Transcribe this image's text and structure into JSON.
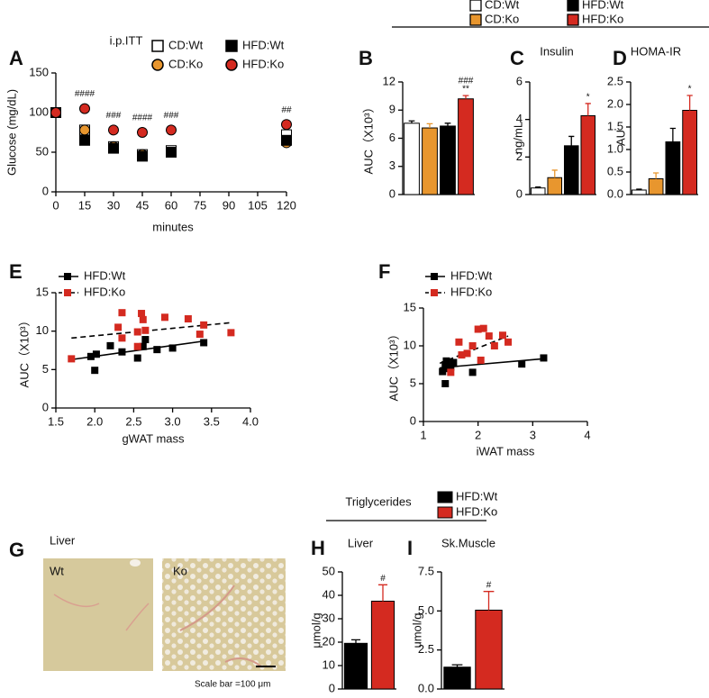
{
  "chart_data": [
    {
      "type": "scatter",
      "panel": "A",
      "title": "i.p.ITT",
      "xlabel": "minutes",
      "ylabel": "Glucose (mg/dL)",
      "x": [
        0,
        15,
        30,
        45,
        60,
        120
      ],
      "xlim": [
        0,
        120
      ],
      "xticks": [
        0,
        15,
        30,
        45,
        60,
        75,
        90,
        105,
        120
      ],
      "ylim": [
        0,
        150
      ],
      "yticks": [
        0,
        50,
        100,
        150
      ],
      "legend": true,
      "annotations": [
        null,
        "####",
        "###",
        "####",
        "###",
        "##"
      ],
      "series": [
        {
          "name": "CD:Wt",
          "color": "#ffffff",
          "marker": "square",
          "values": [
            100,
            78,
            57,
            47,
            52,
            72
          ]
        },
        {
          "name": "CD:Ko",
          "color": "#e8962e",
          "marker": "circle",
          "values": [
            100,
            78,
            57,
            47,
            50,
            62
          ]
        },
        {
          "name": "HFD:Wt",
          "color": "#000000",
          "marker": "square",
          "values": [
            100,
            65,
            55,
            45,
            50,
            65
          ]
        },
        {
          "name": "HFD:Ko",
          "color": "#d42a20",
          "marker": "circle",
          "values": [
            100,
            105,
            78,
            75,
            78,
            85
          ]
        }
      ]
    },
    {
      "type": "bar",
      "panel": "B",
      "ylabel": "AUC（X10³）",
      "categories": [
        null,
        null,
        null,
        null
      ],
      "values": [
        7.6,
        7.1,
        7.3,
        10.2
      ],
      "errors": [
        0.25,
        0.45,
        0.3,
        0.35
      ],
      "colors": [
        "#ffffff",
        "#e8962e",
        "#000000",
        "#d42a20"
      ],
      "annotations": [
        null,
        null,
        null,
        [
          "**",
          "###"
        ]
      ],
      "ylim": [
        0,
        12
      ],
      "yticks": [
        0,
        3,
        6,
        9,
        12
      ]
    },
    {
      "type": "bar",
      "panel": "C",
      "title": "Insulin",
      "ylabel": "ng/mL",
      "categories": [
        null,
        null,
        null,
        null
      ],
      "values": [
        0.35,
        0.9,
        2.6,
        4.2
      ],
      "errors": [
        0.05,
        0.4,
        0.5,
        0.65
      ],
      "colors": [
        "#ffffff",
        "#e8962e",
        "#000000",
        "#d42a20"
      ],
      "annotations": [
        null,
        null,
        null,
        [
          "*"
        ]
      ],
      "ylim": [
        0,
        6
      ],
      "yticks": [
        0,
        2,
        4,
        6
      ]
    },
    {
      "type": "bar",
      "panel": "D",
      "title": "HOMA-IR",
      "ylabel": "AU",
      "categories": [
        null,
        null,
        null,
        null
      ],
      "values": [
        0.1,
        0.35,
        1.17,
        1.87
      ],
      "errors": [
        0.02,
        0.13,
        0.3,
        0.33
      ],
      "colors": [
        "#ffffff",
        "#e8962e",
        "#000000",
        "#d42a20"
      ],
      "annotations": [
        null,
        null,
        null,
        [
          "*"
        ]
      ],
      "ylim": [
        0,
        2.5
      ],
      "yticks": [
        {
          "value": 0,
          "label": "0.0"
        },
        0.5,
        {
          "value": 1,
          "label": "1.0"
        },
        1.5,
        {
          "value": 2,
          "label": "2.0"
        },
        2.5
      ]
    },
    {
      "type": "scatter",
      "panel": "E",
      "xlabel": "gWAT mass",
      "ylabel": "AUC（X10³）",
      "xlim": [
        1.5,
        4.0
      ],
      "xticks": [
        1.5,
        {
          "value": 2,
          "label": "2.0"
        },
        2.5,
        {
          "value": 3,
          "label": "3.0"
        },
        3.5,
        {
          "value": 4,
          "label": "4.0"
        }
      ],
      "ylim": [
        0,
        15
      ],
      "yticks": [
        0,
        5,
        10,
        15
      ],
      "legend": true,
      "series": [
        {
          "name": "HFD:Wt",
          "color": "#000000",
          "marker": "square",
          "x": [
            1.95,
            2.0,
            2.02,
            2.2,
            2.35,
            2.55,
            2.62,
            2.65,
            2.8,
            3.0,
            3.4
          ],
          "values": [
            6.7,
            4.9,
            7.0,
            8.1,
            7.3,
            6.5,
            8.0,
            8.9,
            7.6,
            7.8,
            8.5
          ],
          "fit": {
            "x": [
              1.7,
              3.4
            ],
            "values": [
              6.3,
              8.7
            ]
          }
        },
        {
          "name": "HFD:Ko",
          "color": "#d42a20",
          "marker": "square",
          "dash": true,
          "x": [
            1.7,
            2.3,
            2.35,
            2.35,
            2.55,
            2.55,
            2.6,
            2.62,
            2.65,
            2.9,
            3.2,
            3.35,
            3.4,
            3.75
          ],
          "values": [
            6.4,
            10.5,
            12.4,
            9.1,
            9.9,
            8.0,
            12.3,
            11.5,
            10.1,
            11.8,
            11.6,
            9.6,
            10.8,
            9.8
          ],
          "fit": {
            "x": [
              1.7,
              3.75
            ],
            "values": [
              9.1,
              11.1
            ]
          }
        }
      ]
    },
    {
      "type": "scatter",
      "panel": "F",
      "xlabel": "iWAT mass",
      "ylabel": "AUC（X10³）",
      "xlim": [
        1,
        4
      ],
      "xticks": [
        1,
        2,
        3,
        4
      ],
      "ylim": [
        0,
        15
      ],
      "yticks": [
        0,
        5,
        10,
        15
      ],
      "legend": true,
      "series": [
        {
          "name": "HFD:Wt",
          "color": "#000000",
          "marker": "square",
          "x": [
            1.35,
            1.4,
            1.42,
            1.45,
            1.5,
            1.55,
            1.9,
            2.8,
            3.2,
            1.4
          ],
          "values": [
            6.6,
            5.0,
            8.0,
            7.0,
            7.2,
            7.8,
            6.5,
            7.6,
            8.4,
            7.5
          ],
          "fit": {
            "x": [
              1.3,
              3.2
            ],
            "values": [
              7.1,
              8.3
            ]
          }
        },
        {
          "name": "HFD:Ko",
          "color": "#d42a20",
          "marker": "square",
          "dash": true,
          "x": [
            1.5,
            1.65,
            1.7,
            1.8,
            2.0,
            2.05,
            2.1,
            2.2,
            2.3,
            2.45,
            2.55,
            1.9
          ],
          "values": [
            6.5,
            10.5,
            8.8,
            9.0,
            12.2,
            8.1,
            12.3,
            11.3,
            10.0,
            11.4,
            10.5,
            10.0
          ],
          "fit": {
            "x": [
              1.3,
              2.55
            ],
            "values": [
              7.7,
              11.3
            ]
          }
        }
      ]
    },
    {
      "type": "bar",
      "panel": "H",
      "title": "Liver",
      "ylabel": "μmol/g",
      "categories": [
        null,
        null
      ],
      "values": [
        19.5,
        37.5
      ],
      "errors": [
        1.5,
        7
      ],
      "colors": [
        "#000000",
        "#d42a20"
      ],
      "annotations": [
        null,
        [
          "#"
        ]
      ],
      "ylim": [
        0,
        50
      ],
      "yticks": [
        0,
        10,
        20,
        30,
        40,
        50
      ]
    },
    {
      "type": "bar",
      "panel": "I",
      "title": "Sk.Muscle",
      "ylabel": "umol/g",
      "categories": [
        null,
        null
      ],
      "values": [
        1.4,
        5.05
      ],
      "errors": [
        0.15,
        1.2
      ],
      "colors": [
        "#000000",
        "#d42a20"
      ],
      "annotations": [
        null,
        [
          "#"
        ]
      ],
      "ylim": [
        0,
        7.5
      ],
      "yticks": [
        {
          "value": 0,
          "label": "0.0"
        },
        2.5,
        {
          "value": 5,
          "label": "5.0"
        },
        7.5
      ]
    }
  ],
  "top_legend": {
    "entries": [
      {
        "name": "CD:Wt",
        "color": "#ffffff"
      },
      {
        "name": "CD:Ko",
        "color": "#e8962e"
      },
      {
        "name": "HFD:Wt",
        "color": "#000000"
      },
      {
        "name": "HFD:Ko",
        "color": "#d42a20"
      }
    ]
  },
  "triglycerides": {
    "title": "Triglycerides",
    "entries": [
      {
        "name": "HFD:Wt",
        "color": "#000000"
      },
      {
        "name": "HFD:Ko",
        "color": "#d42a20"
      }
    ]
  },
  "liver_images": {
    "panel": "G",
    "title": "Liver",
    "labels": [
      "Wt",
      "Ko"
    ],
    "scale_bar": "Scale bar =100 μm"
  }
}
